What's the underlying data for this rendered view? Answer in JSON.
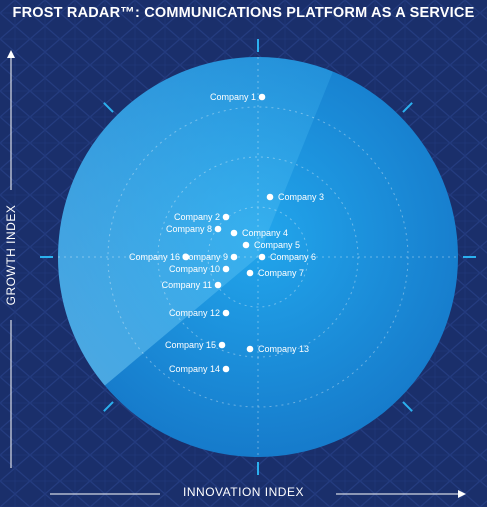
{
  "title": "FROST RADAR™: COMMUNICATIONS PLATFORM AS A SERVICE",
  "colors": {
    "background": "#1a2f6b",
    "circle": "#1a8fd8",
    "accent": "#2bb0ef",
    "axis": "#ffffff",
    "dot": "#ffffff",
    "label": "#ffffff"
  },
  "chart_data": {
    "type": "scatter",
    "title": "FROST RADAR™: COMMUNICATIONS PLATFORM AS A SERVICE",
    "xlabel": "INNOVATION INDEX",
    "ylabel": "GROWTH INDEX",
    "xlim": [
      0,
      10
    ],
    "ylim": [
      0,
      10
    ],
    "grid": true,
    "points": [
      {
        "name": "Company 1",
        "x": 5.1,
        "y": 9.0
      },
      {
        "name": "Company 2",
        "x": 4.2,
        "y": 6.0
      },
      {
        "name": "Company 3",
        "x": 5.3,
        "y": 6.5
      },
      {
        "name": "Company 4",
        "x": 4.4,
        "y": 5.6
      },
      {
        "name": "Company 5",
        "x": 4.7,
        "y": 5.3
      },
      {
        "name": "Company 6",
        "x": 5.1,
        "y": 5.0
      },
      {
        "name": "Company 7",
        "x": 4.8,
        "y": 4.6
      },
      {
        "name": "Company 8",
        "x": 4.0,
        "y": 5.7
      },
      {
        "name": "Company 9",
        "x": 4.4,
        "y": 5.0
      },
      {
        "name": "Company 10",
        "x": 4.2,
        "y": 4.7
      },
      {
        "name": "Company 11",
        "x": 4.0,
        "y": 4.3
      },
      {
        "name": "Company 12",
        "x": 4.2,
        "y": 3.6
      },
      {
        "name": "Company 13",
        "x": 4.8,
        "y": 2.7
      },
      {
        "name": "Company 14",
        "x": 4.2,
        "y": 2.2
      },
      {
        "name": "Company 15",
        "x": 4.1,
        "y": 2.8
      },
      {
        "name": "Company 16",
        "x": 3.2,
        "y": 5.0
      }
    ]
  }
}
